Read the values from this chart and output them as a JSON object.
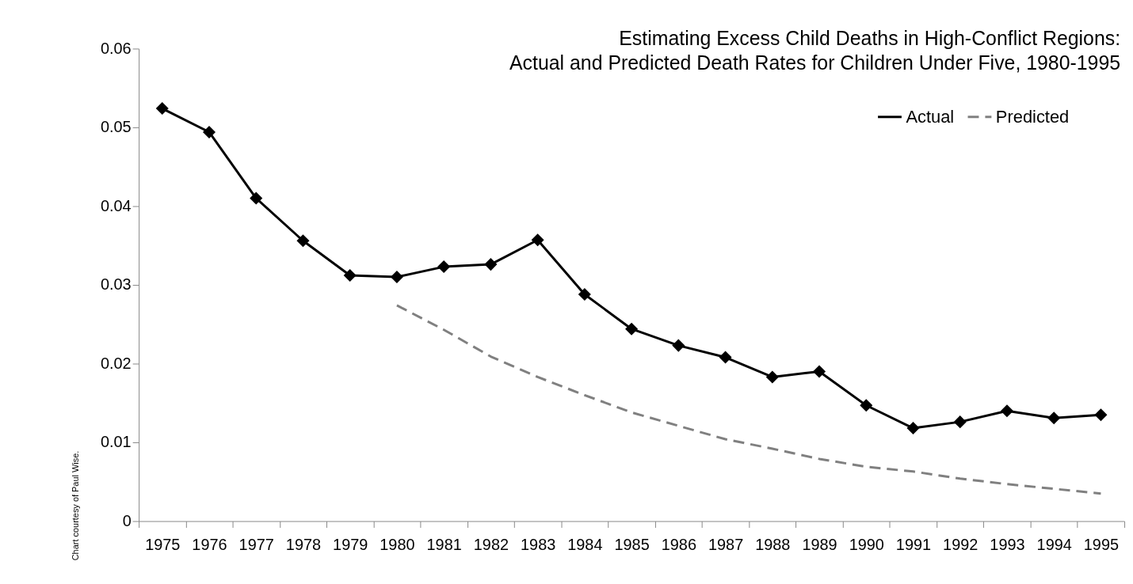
{
  "chart_data": {
    "type": "line",
    "title": "Estimating Excess Child Deaths in High-Conflict Regions:\nActual and Predicted Death Rates for Children Under Five, 1980-1995",
    "categories": [
      "1975",
      "1976",
      "1977",
      "1978",
      "1979",
      "1980",
      "1981",
      "1982",
      "1983",
      "1984",
      "1985",
      "1986",
      "1987",
      "1988",
      "1989",
      "1990",
      "1991",
      "1992",
      "1993",
      "1994",
      "1995"
    ],
    "series": [
      {
        "name": "Actual",
        "color": "#000000",
        "marker": "diamond",
        "line_style": "solid",
        "values": [
          0.0524,
          0.0494,
          0.041,
          0.0356,
          0.0312,
          0.031,
          0.0323,
          0.0326,
          0.0357,
          0.0288,
          0.0244,
          0.0223,
          0.0208,
          0.0183,
          0.019,
          0.0147,
          0.0118,
          0.0126,
          0.014,
          0.0131,
          0.0135
        ]
      },
      {
        "name": "Predicted",
        "color": "#808080",
        "marker": "none",
        "line_style": "dashed",
        "values": [
          null,
          null,
          null,
          null,
          null,
          0.0274,
          0.0243,
          0.0209,
          0.0183,
          0.016,
          0.0138,
          0.0121,
          0.0104,
          0.0092,
          0.0079,
          0.0069,
          0.0063,
          0.0054,
          0.0047,
          0.0041,
          0.0035
        ]
      }
    ],
    "ylim": [
      0,
      0.06
    ],
    "yticks": [
      0,
      0.01,
      0.02,
      0.03,
      0.04,
      0.05,
      0.06
    ],
    "grid": false,
    "legend": "top right",
    "annotations": [
      "Chart courtesy of Paul Wise."
    ]
  }
}
